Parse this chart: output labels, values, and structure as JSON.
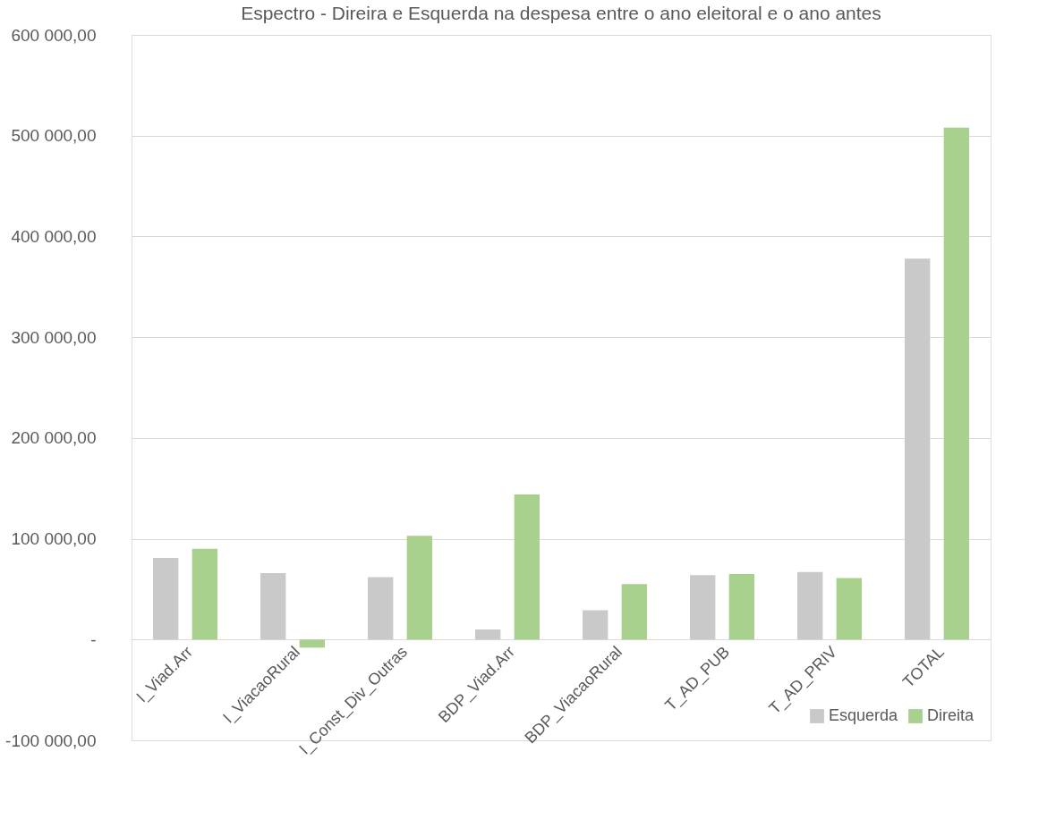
{
  "chart_data": {
    "type": "bar",
    "title": "Espectro - Direira e Esquerda na despesa entre o ano eleitoral e o ano antes",
    "categories": [
      "I_Viad.Arr",
      "I_ViacaoRural",
      "I_Const_Div_Outras",
      "BDP_Viad.Arr",
      "BDP_ViacaoRural",
      "T_AD_PUB",
      "T_AD_PRIV",
      "TOTAL"
    ],
    "series": [
      {
        "name": "Esquerda",
        "color": "#c9c9c9",
        "values": [
          81000,
          66000,
          62000,
          10000,
          29000,
          64000,
          67000,
          378000
        ]
      },
      {
        "name": "Direita",
        "color": "#a9d18e",
        "values": [
          90000,
          -8000,
          103000,
          144000,
          55000,
          65000,
          61000,
          508000
        ]
      }
    ],
    "ylim": [
      -100000,
      600000
    ],
    "yticks": [
      {
        "value": -100000,
        "label": "-100 000,00"
      },
      {
        "value": 0,
        "label": "-"
      },
      {
        "value": 100000,
        "label": "100 000,00"
      },
      {
        "value": 200000,
        "label": "200 000,00"
      },
      {
        "value": 300000,
        "label": "300 000,00"
      },
      {
        "value": 400000,
        "label": "400 000,00"
      },
      {
        "value": 500000,
        "label": "500 000,00"
      },
      {
        "value": 600000,
        "label": "600 000,00"
      }
    ],
    "grid": "y",
    "legend": "bottom right"
  }
}
